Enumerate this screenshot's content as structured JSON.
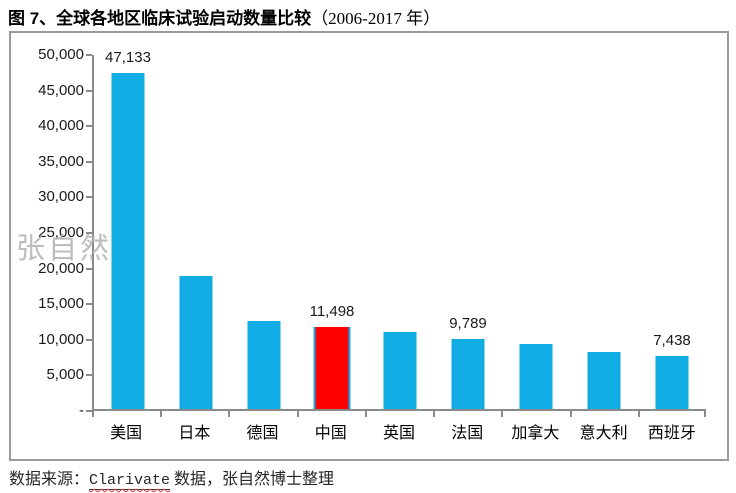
{
  "page": {
    "title_main": "图 7、全球各地区临床试验启动数量比较",
    "title_period": "（2006-2017 年）"
  },
  "watermark": {
    "text": "张自然"
  },
  "source": {
    "prefix": "数据来源：",
    "vendor": "Clarivate",
    "suffix": " 数据，张自然博士整理"
  },
  "colors": {
    "bar": "#12ACE4",
    "bar_highlight": "#FE0000",
    "axis": "#8A8A8A",
    "frame_border": "#9A9A9A",
    "text": "#1A1A1A",
    "watermark": "#ADADAD",
    "spellcheck_underline": "#E03030"
  },
  "chart_data": {
    "type": "bar",
    "title": "图 7、全球各地区临床试验启动数量比较（2006-2017 年）",
    "xlabel": "",
    "ylabel": "",
    "categories": [
      "美国",
      "日本",
      "德国",
      "中国",
      "英国",
      "法国",
      "加拿大",
      "意大利",
      "西班牙"
    ],
    "values": [
      47133,
      18700,
      12400,
      11498,
      10850,
      9789,
      9150,
      8000,
      7438
    ],
    "data_labels": [
      "47,133",
      "",
      "",
      "11,498",
      "",
      "9,789",
      "",
      "",
      "7,438"
    ],
    "highlight_category": "中国",
    "highlight_index": 3,
    "ylim": [
      0,
      50000
    ],
    "ytick_interval": 5000,
    "ytick_labels": [
      "50,000",
      "45,000",
      "40,000",
      "35,000",
      "30,000",
      "25,000",
      "20,000",
      "15,000",
      "10,000",
      "5,000",
      "-"
    ],
    "grid": false,
    "legend": false
  }
}
